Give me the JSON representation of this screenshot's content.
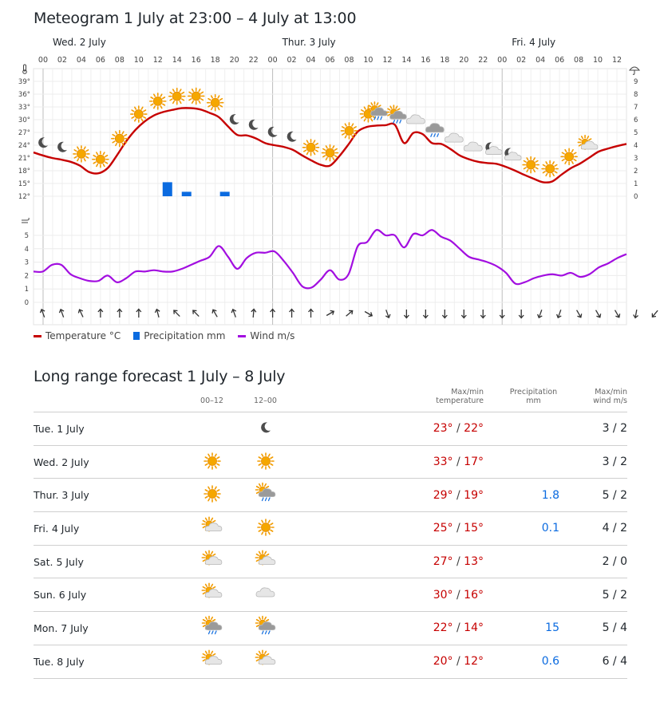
{
  "meteogram": {
    "title": "Meteogram 1 July at 23:00 – 4 July at 13:00",
    "days": [
      {
        "label": "Wed. 2 July",
        "hour": 0
      },
      {
        "label": "Thur. 3 July",
        "hour": 24
      },
      {
        "label": "Fri. 4 July",
        "hour": 48
      }
    ],
    "legend": {
      "temperature": "Temperature °C",
      "precipitation": "Precipitation mm",
      "wind": "Wind m/s"
    },
    "colors": {
      "temperature": "#c60000",
      "precipitation": "#0b6be0",
      "wind": "#a20ee0"
    }
  },
  "chart_data": {
    "type": "line",
    "x_start_hour": -1,
    "x_end_hour": 61,
    "x_tick_labels": [
      "00",
      "02",
      "04",
      "06",
      "08",
      "10",
      "12",
      "14",
      "16",
      "18",
      "20",
      "22",
      "00",
      "02",
      "04",
      "06",
      "08",
      "10",
      "12",
      "14",
      "16",
      "18",
      "20",
      "22",
      "00",
      "02",
      "04",
      "06",
      "08",
      "10",
      "12"
    ],
    "temperature": {
      "y_tick_labels": [
        "12°",
        "15°",
        "18°",
        "21°",
        "24°",
        "27°",
        "30°",
        "33°",
        "36°",
        "39°"
      ],
      "ylim": [
        12,
        39
      ],
      "values": [
        22.3,
        21.6,
        21.0,
        20.6,
        20.1,
        19.2,
        17.7,
        17.4,
        18.6,
        21.6,
        24.9,
        27.6,
        29.6,
        31.0,
        31.8,
        32.3,
        32.7,
        32.7,
        32.4,
        31.6,
        30.6,
        28.4,
        26.4,
        26.3,
        25.6,
        24.5,
        24.0,
        23.6,
        22.9,
        21.6,
        20.4,
        19.4,
        19.2,
        21.4,
        24.2,
        27.2,
        28.3,
        28.6,
        28.7,
        28.8,
        24.5,
        26.9,
        26.6,
        24.5,
        24.3,
        23.1,
        21.6,
        20.7,
        20.1,
        19.8,
        19.6,
        18.9,
        18.0,
        17.0,
        16.1,
        15.3,
        15.5,
        17.1,
        18.6,
        19.7,
        21.1,
        22.5,
        23.2,
        23.8,
        24.3
      ]
    },
    "precipitation": {
      "y_tick_labels": [
        "0",
        "1",
        "2",
        "3",
        "4",
        "5",
        "6",
        "7",
        "8",
        "9"
      ],
      "ylim": [
        0,
        9
      ],
      "bars": [
        {
          "hour": 13,
          "value": 1.1
        },
        {
          "hour": 15,
          "value": 0.35
        },
        {
          "hour": 19,
          "value": 0.35
        }
      ]
    },
    "wind": {
      "y_tick_labels": [
        "0",
        "1",
        "2",
        "3",
        "4",
        "5"
      ],
      "ylim": [
        0,
        5
      ],
      "values": [
        2.3,
        2.3,
        2.8,
        2.8,
        2.1,
        1.8,
        1.6,
        1.6,
        2.0,
        1.5,
        1.8,
        2.3,
        2.3,
        2.4,
        2.3,
        2.3,
        2.5,
        2.8,
        3.1,
        3.4,
        4.2,
        3.4,
        2.5,
        3.3,
        3.7,
        3.7,
        3.8,
        3.1,
        2.2,
        1.2,
        1.1,
        1.7,
        2.4,
        1.7,
        2.1,
        4.2,
        4.5,
        5.4,
        5.0,
        5.0,
        4.1,
        5.1,
        5.0,
        5.4,
        4.9,
        4.6,
        4.0,
        3.4,
        3.2,
        3.0,
        2.7,
        2.2,
        1.4,
        1.5,
        1.8,
        2.0,
        2.1,
        2.0,
        2.2,
        1.9,
        2.1,
        2.6,
        2.9,
        3.3,
        3.6
      ],
      "directions": [
        160,
        160,
        155,
        180,
        180,
        180,
        165,
        135,
        135,
        150,
        160,
        185,
        180,
        180,
        180,
        240,
        230,
        300,
        340,
        360,
        360,
        360,
        360,
        360,
        360,
        360,
        20,
        20,
        330,
        330,
        330,
        10,
        40
      ]
    },
    "symbols": [
      {
        "hour": 0,
        "icon": "moon-icon"
      },
      {
        "hour": 2,
        "icon": "moon-icon"
      },
      {
        "hour": 4,
        "icon": "sun-icon"
      },
      {
        "hour": 6,
        "icon": "sun-icon"
      },
      {
        "hour": 8,
        "icon": "sun-icon"
      },
      {
        "hour": 10,
        "icon": "sun-icon"
      },
      {
        "hour": 12,
        "icon": "sun-icon"
      },
      {
        "hour": 14,
        "icon": "sun-icon"
      },
      {
        "hour": 16,
        "icon": "sun-icon"
      },
      {
        "hour": 18,
        "icon": "sun-icon"
      },
      {
        "hour": 20,
        "icon": "moon-icon"
      },
      {
        "hour": 22,
        "icon": "moon-icon"
      },
      {
        "hour": 24,
        "icon": "moon-icon"
      },
      {
        "hour": 26,
        "icon": "moon-icon"
      },
      {
        "hour": 28,
        "icon": "sun-icon"
      },
      {
        "hour": 30,
        "icon": "sun-icon"
      },
      {
        "hour": 32,
        "icon": "sun-icon"
      },
      {
        "hour": 34,
        "icon": "sun-icon"
      },
      {
        "hour": 35,
        "icon": "sun-cloud-rain-icon"
      },
      {
        "hour": 37,
        "icon": "sun-cloud-rain-icon"
      },
      {
        "hour": 39,
        "icon": "cloud-icon"
      },
      {
        "hour": 41,
        "icon": "cloud-rain-icon"
      },
      {
        "hour": 43,
        "icon": "cloud-icon"
      },
      {
        "hour": 45,
        "icon": "cloud-icon"
      },
      {
        "hour": 47,
        "icon": "moon-cloud-icon"
      },
      {
        "hour": 49,
        "icon": "moon-cloud-icon"
      },
      {
        "hour": 51,
        "icon": "sun-icon"
      },
      {
        "hour": 53,
        "icon": "sun-icon"
      },
      {
        "hour": 55,
        "icon": "sun-icon"
      },
      {
        "hour": 57,
        "icon": "sun-cloud-icon"
      }
    ]
  },
  "long_range": {
    "title": "Long range forecast 1 July – 8 July",
    "headers": {
      "period1": "00–12",
      "period2": "12–00",
      "temp": [
        "Max/min",
        "temperature"
      ],
      "precip": [
        "Precipitation",
        "mm"
      ],
      "wind": [
        "Max/min",
        "wind m/s"
      ]
    },
    "rows": [
      {
        "day": "Tue. 1 July",
        "sym1": "",
        "sym2": "moon-icon",
        "max": "23°",
        "min": "22°",
        "precip": "",
        "wind": "3 / 2"
      },
      {
        "day": "Wed. 2 July",
        "sym1": "sun-icon",
        "sym2": "sun-icon",
        "max": "33°",
        "min": "17°",
        "precip": "",
        "wind": "3 / 2"
      },
      {
        "day": "Thur. 3 July",
        "sym1": "sun-icon",
        "sym2": "sun-cloud-rain-icon",
        "max": "29°",
        "min": "19°",
        "precip": "1.8",
        "wind": "5 / 2"
      },
      {
        "day": "Fri. 4 July",
        "sym1": "sun-cloud-icon",
        "sym2": "sun-icon",
        "max": "25°",
        "min": "15°",
        "precip": "0.1",
        "wind": "4 / 2"
      },
      {
        "day": "Sat. 5 July",
        "sym1": "sun-cloud-icon",
        "sym2": "sun-cloud-icon",
        "max": "27°",
        "min": "13°",
        "precip": "",
        "wind": "2 / 0"
      },
      {
        "day": "Sun. 6 July",
        "sym1": "sun-cloud-icon",
        "sym2": "cloud-icon",
        "max": "30°",
        "min": "16°",
        "precip": "",
        "wind": "5 / 2"
      },
      {
        "day": "Mon. 7 July",
        "sym1": "sun-cloud-rain-icon",
        "sym2": "sun-cloud-rain-icon",
        "max": "22°",
        "min": "14°",
        "precip": "15",
        "wind": "5 / 4"
      },
      {
        "day": "Tue. 8 July",
        "sym1": "sun-cloud-icon",
        "sym2": "sun-cloud-icon",
        "max": "20°",
        "min": "12°",
        "precip": "0.6",
        "wind": "6 / 4"
      }
    ]
  }
}
